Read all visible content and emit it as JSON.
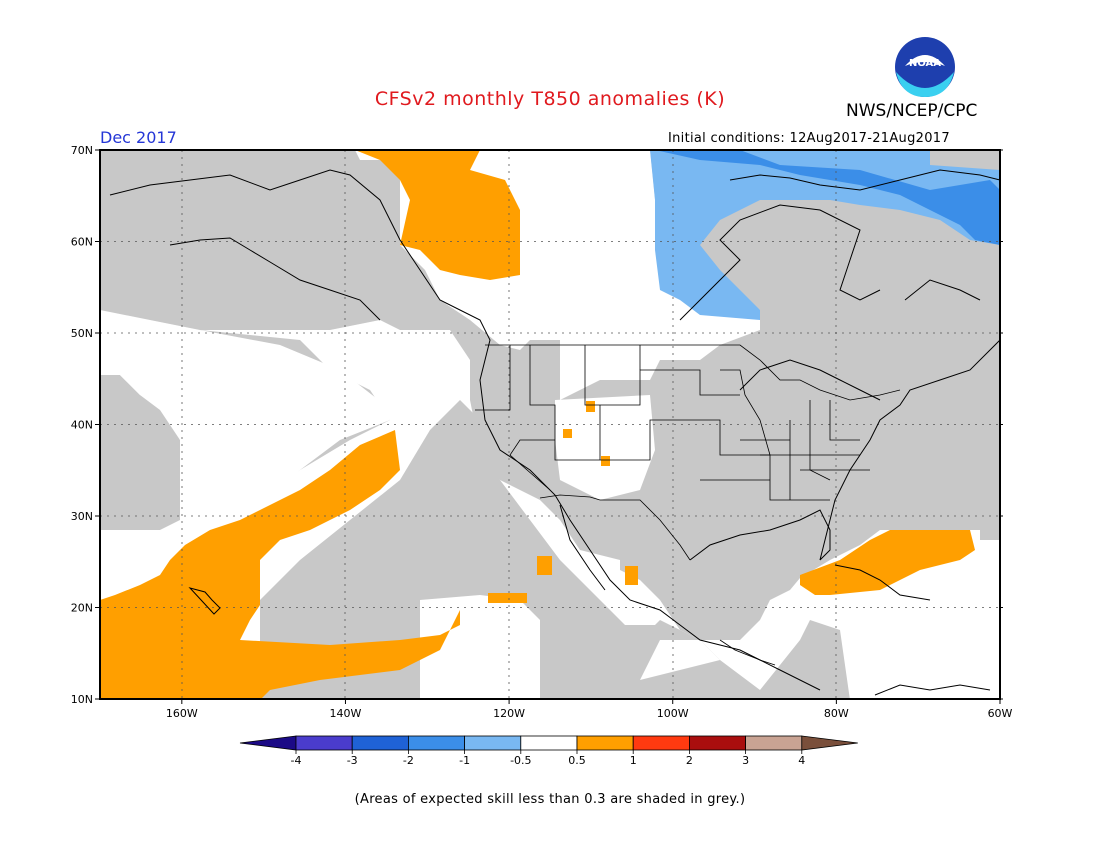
{
  "title": "CFSv2 monthly T850 anomalies (K)",
  "agency": "NWS/NCEP/CPC",
  "logo_text": "NOAA",
  "month": "Dec 2017",
  "initial_conditions": "Initial conditions:  12Aug2017-21Aug2017",
  "footnote": "(Areas of expected skill less than 0.3 are shaded in grey.)",
  "map": {
    "lat_labels": [
      "70N",
      "60N",
      "50N",
      "40N",
      "30N",
      "20N",
      "10N"
    ],
    "lon_labels": [
      "160W",
      "140W",
      "120W",
      "100W",
      "80W",
      "60W"
    ],
    "lat_range": [
      10,
      70
    ],
    "lon_range": [
      -170,
      -60
    ]
  },
  "legend": {
    "labels": [
      "-4",
      "-3",
      "-2",
      "-1",
      "-0.5",
      "0.5",
      "1",
      "2",
      "3",
      "4"
    ],
    "colors": [
      "#1b0a86",
      "#4a3ccc",
      "#1f62d6",
      "#3b8ee8",
      "#79b8f2",
      "#ffffff",
      "#ff9f00",
      "#ff3a10",
      "#a90e0e",
      "#c9a393",
      "#7a4f3b"
    ],
    "grey": "#c8c8c8"
  }
}
